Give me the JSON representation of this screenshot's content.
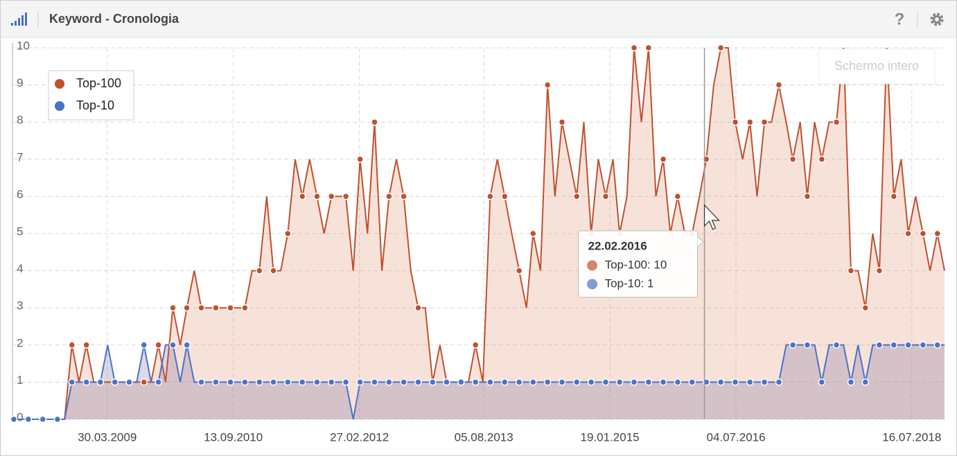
{
  "header": {
    "title": "Keyword - Cronologia",
    "help": "?"
  },
  "fullscreen_button": "Schermo intero",
  "chart_data": {
    "type": "line",
    "x": [
      "01.03.2008",
      "01.04.2008",
      "01.05.2008",
      "01.06.2008",
      "01.07.2008",
      "01.08.2008",
      "01.09.2008",
      "01.10.2008",
      "01.11.2008",
      "01.12.2008",
      "01.01.2009",
      "01.02.2009",
      "01.03.2009",
      "01.04.2009",
      "01.05.2009",
      "01.06.2009",
      "01.07.2009",
      "01.08.2009",
      "01.09.2009",
      "01.10.2009",
      "01.11.2009",
      "01.12.2009",
      "01.01.2010",
      "01.02.2010",
      "01.03.2010",
      "01.04.2010",
      "01.05.2010",
      "01.06.2010",
      "01.07.2010",
      "01.08.2010",
      "01.09.2010",
      "01.10.2010",
      "01.11.2010",
      "01.12.2010",
      "01.01.2011",
      "01.02.2011",
      "01.03.2011",
      "01.04.2011",
      "01.05.2011",
      "01.06.2011",
      "01.07.2011",
      "01.08.2011",
      "01.09.2011",
      "01.10.2011",
      "01.11.2011",
      "01.12.2011",
      "01.01.2012",
      "01.02.2012",
      "01.03.2012",
      "01.04.2012",
      "01.05.2012",
      "01.06.2012",
      "01.07.2012",
      "01.08.2012",
      "01.09.2012",
      "01.10.2012",
      "01.11.2012",
      "01.12.2012",
      "01.01.2013",
      "01.02.2013",
      "01.03.2013",
      "01.04.2013",
      "01.05.2013",
      "01.06.2013",
      "01.07.2013",
      "01.08.2013",
      "01.09.2013",
      "01.10.2013",
      "01.11.2013",
      "01.12.2013",
      "01.01.2014",
      "01.02.2014",
      "01.03.2014",
      "01.04.2014",
      "01.05.2014",
      "01.06.2014",
      "01.07.2014",
      "01.08.2014",
      "01.09.2014",
      "01.10.2014",
      "01.11.2014",
      "01.12.2014",
      "01.01.2015",
      "01.02.2015",
      "01.03.2015",
      "01.04.2015",
      "01.05.2015",
      "01.06.2015",
      "01.07.2015",
      "01.08.2015",
      "01.09.2015",
      "01.10.2015",
      "01.11.2015",
      "01.12.2015",
      "01.01.2016",
      "01.02.2016",
      "01.03.2016",
      "01.04.2016",
      "01.05.2016",
      "01.06.2016",
      "01.07.2016",
      "01.08.2016",
      "01.09.2016",
      "01.10.2016",
      "01.11.2016",
      "01.12.2016",
      "01.01.2017",
      "01.02.2017",
      "01.03.2017",
      "01.04.2017",
      "01.05.2017",
      "01.06.2017",
      "01.07.2017",
      "01.08.2017",
      "01.09.2017",
      "01.10.2017",
      "01.11.2017",
      "01.12.2017",
      "01.01.2018",
      "01.02.2018",
      "01.03.2018",
      "01.04.2018",
      "01.05.2018",
      "01.06.2018",
      "01.07.2018",
      "01.08.2018",
      "01.09.2018",
      "01.10.2018",
      "01.11.2018",
      "01.12.2018"
    ],
    "series": [
      {
        "name": "Top-100",
        "color": "#c0502e",
        "fill": "rgba(222,150,120,0.28)",
        "values": [
          0,
          0,
          0,
          0,
          0,
          0,
          0,
          0,
          2,
          1,
          2,
          1,
          1,
          1,
          1,
          1,
          1,
          1,
          1,
          1,
          2,
          1,
          3,
          2,
          3,
          4,
          3,
          3,
          3,
          3,
          3,
          3,
          3,
          4,
          4,
          6,
          4,
          4,
          5,
          7,
          6,
          7,
          6,
          5,
          6,
          6,
          6,
          4,
          7,
          5,
          8,
          4,
          6,
          7,
          6,
          4,
          3,
          3,
          1,
          2,
          1,
          1,
          1,
          1,
          2,
          1,
          6,
          7,
          6,
          5,
          4,
          3,
          5,
          4,
          9,
          6,
          8,
          7,
          6,
          8,
          5,
          7,
          6,
          7,
          5,
          6,
          10,
          8,
          10,
          6,
          7,
          5,
          6,
          5,
          5,
          6,
          7,
          9,
          10,
          10,
          8,
          7,
          8,
          6,
          8,
          8,
          9,
          8,
          7,
          8,
          6,
          8,
          7,
          8,
          8,
          10,
          4,
          4,
          3,
          5,
          4,
          10,
          6,
          7,
          5,
          6,
          5,
          4,
          5,
          4
        ]
      },
      {
        "name": "Top-10",
        "color": "#4a72c8",
        "fill": "rgba(110,100,150,0.25)",
        "values": [
          0,
          0,
          0,
          0,
          0,
          0,
          0,
          0,
          1,
          1,
          1,
          1,
          1,
          2,
          1,
          1,
          1,
          1,
          2,
          1,
          1,
          2,
          2,
          1,
          2,
          1,
          1,
          1,
          1,
          1,
          1,
          1,
          1,
          1,
          1,
          1,
          1,
          1,
          1,
          1,
          1,
          1,
          1,
          1,
          1,
          1,
          1,
          0,
          1,
          1,
          1,
          1,
          1,
          1,
          1,
          1,
          1,
          1,
          1,
          1,
          1,
          1,
          1,
          1,
          1,
          1,
          1,
          1,
          1,
          1,
          1,
          1,
          1,
          1,
          1,
          1,
          1,
          1,
          1,
          1,
          1,
          1,
          1,
          1,
          1,
          1,
          1,
          1,
          1,
          1,
          1,
          1,
          1,
          1,
          1,
          1,
          1,
          1,
          1,
          1,
          1,
          1,
          1,
          1,
          1,
          1,
          1,
          2,
          2,
          2,
          2,
          2,
          1,
          2,
          2,
          2,
          1,
          2,
          1,
          2,
          2,
          2,
          2,
          2,
          2,
          2,
          2,
          2,
          2,
          2
        ]
      }
    ],
    "xlim": [
      "01.03.2008",
      "01.12.2018"
    ],
    "xticks": [
      "30.03.2009",
      "13.09.2010",
      "27.02.2012",
      "05.08.2013",
      "19.01.2015",
      "04.07.2016",
      "16.07.2018"
    ],
    "ylim": [
      0,
      10
    ],
    "yticks": [
      0,
      1,
      2,
      3,
      4,
      5,
      6,
      7,
      8,
      9,
      10
    ],
    "grid": true,
    "legend": "top-left",
    "tooltip": {
      "date": "22.02.2016",
      "title": "22.02.2016",
      "items": [
        "Top-100: 10",
        "Top-10: 1"
      ]
    }
  }
}
